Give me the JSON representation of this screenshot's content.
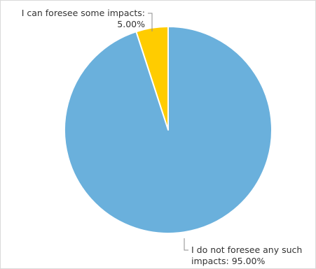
{
  "chart_data": {
    "type": "pie",
    "title": "",
    "slices": [
      {
        "label": "I can foresee some impacts:",
        "value_text": "5.00%",
        "value": 5.0,
        "color": "#ffcc00"
      },
      {
        "label": "I do not foresee any such",
        "label_line2": "impacts: 95.00%",
        "value": 95.0,
        "color": "#6ab0dc"
      }
    ],
    "start_angle_deg": 0,
    "direction": "counterclockwise",
    "legend": "none"
  }
}
